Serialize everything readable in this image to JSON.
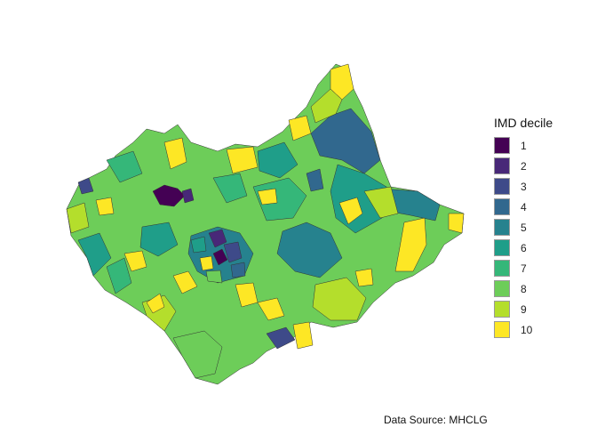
{
  "legend": {
    "title": "IMD decile",
    "items": [
      {
        "label": "1",
        "color": "#440154"
      },
      {
        "label": "2",
        "color": "#482878"
      },
      {
        "label": "3",
        "color": "#3E4A89"
      },
      {
        "label": "4",
        "color": "#31688E"
      },
      {
        "label": "5",
        "color": "#26828E"
      },
      {
        "label": "6",
        "color": "#1F9E89"
      },
      {
        "label": "7",
        "color": "#35B779"
      },
      {
        "label": "8",
        "color": "#6DCD59"
      },
      {
        "label": "9",
        "color": "#B4DE2C"
      },
      {
        "label": "10",
        "color": "#FDE725"
      }
    ]
  },
  "caption": "Data Source: MHCLG"
}
